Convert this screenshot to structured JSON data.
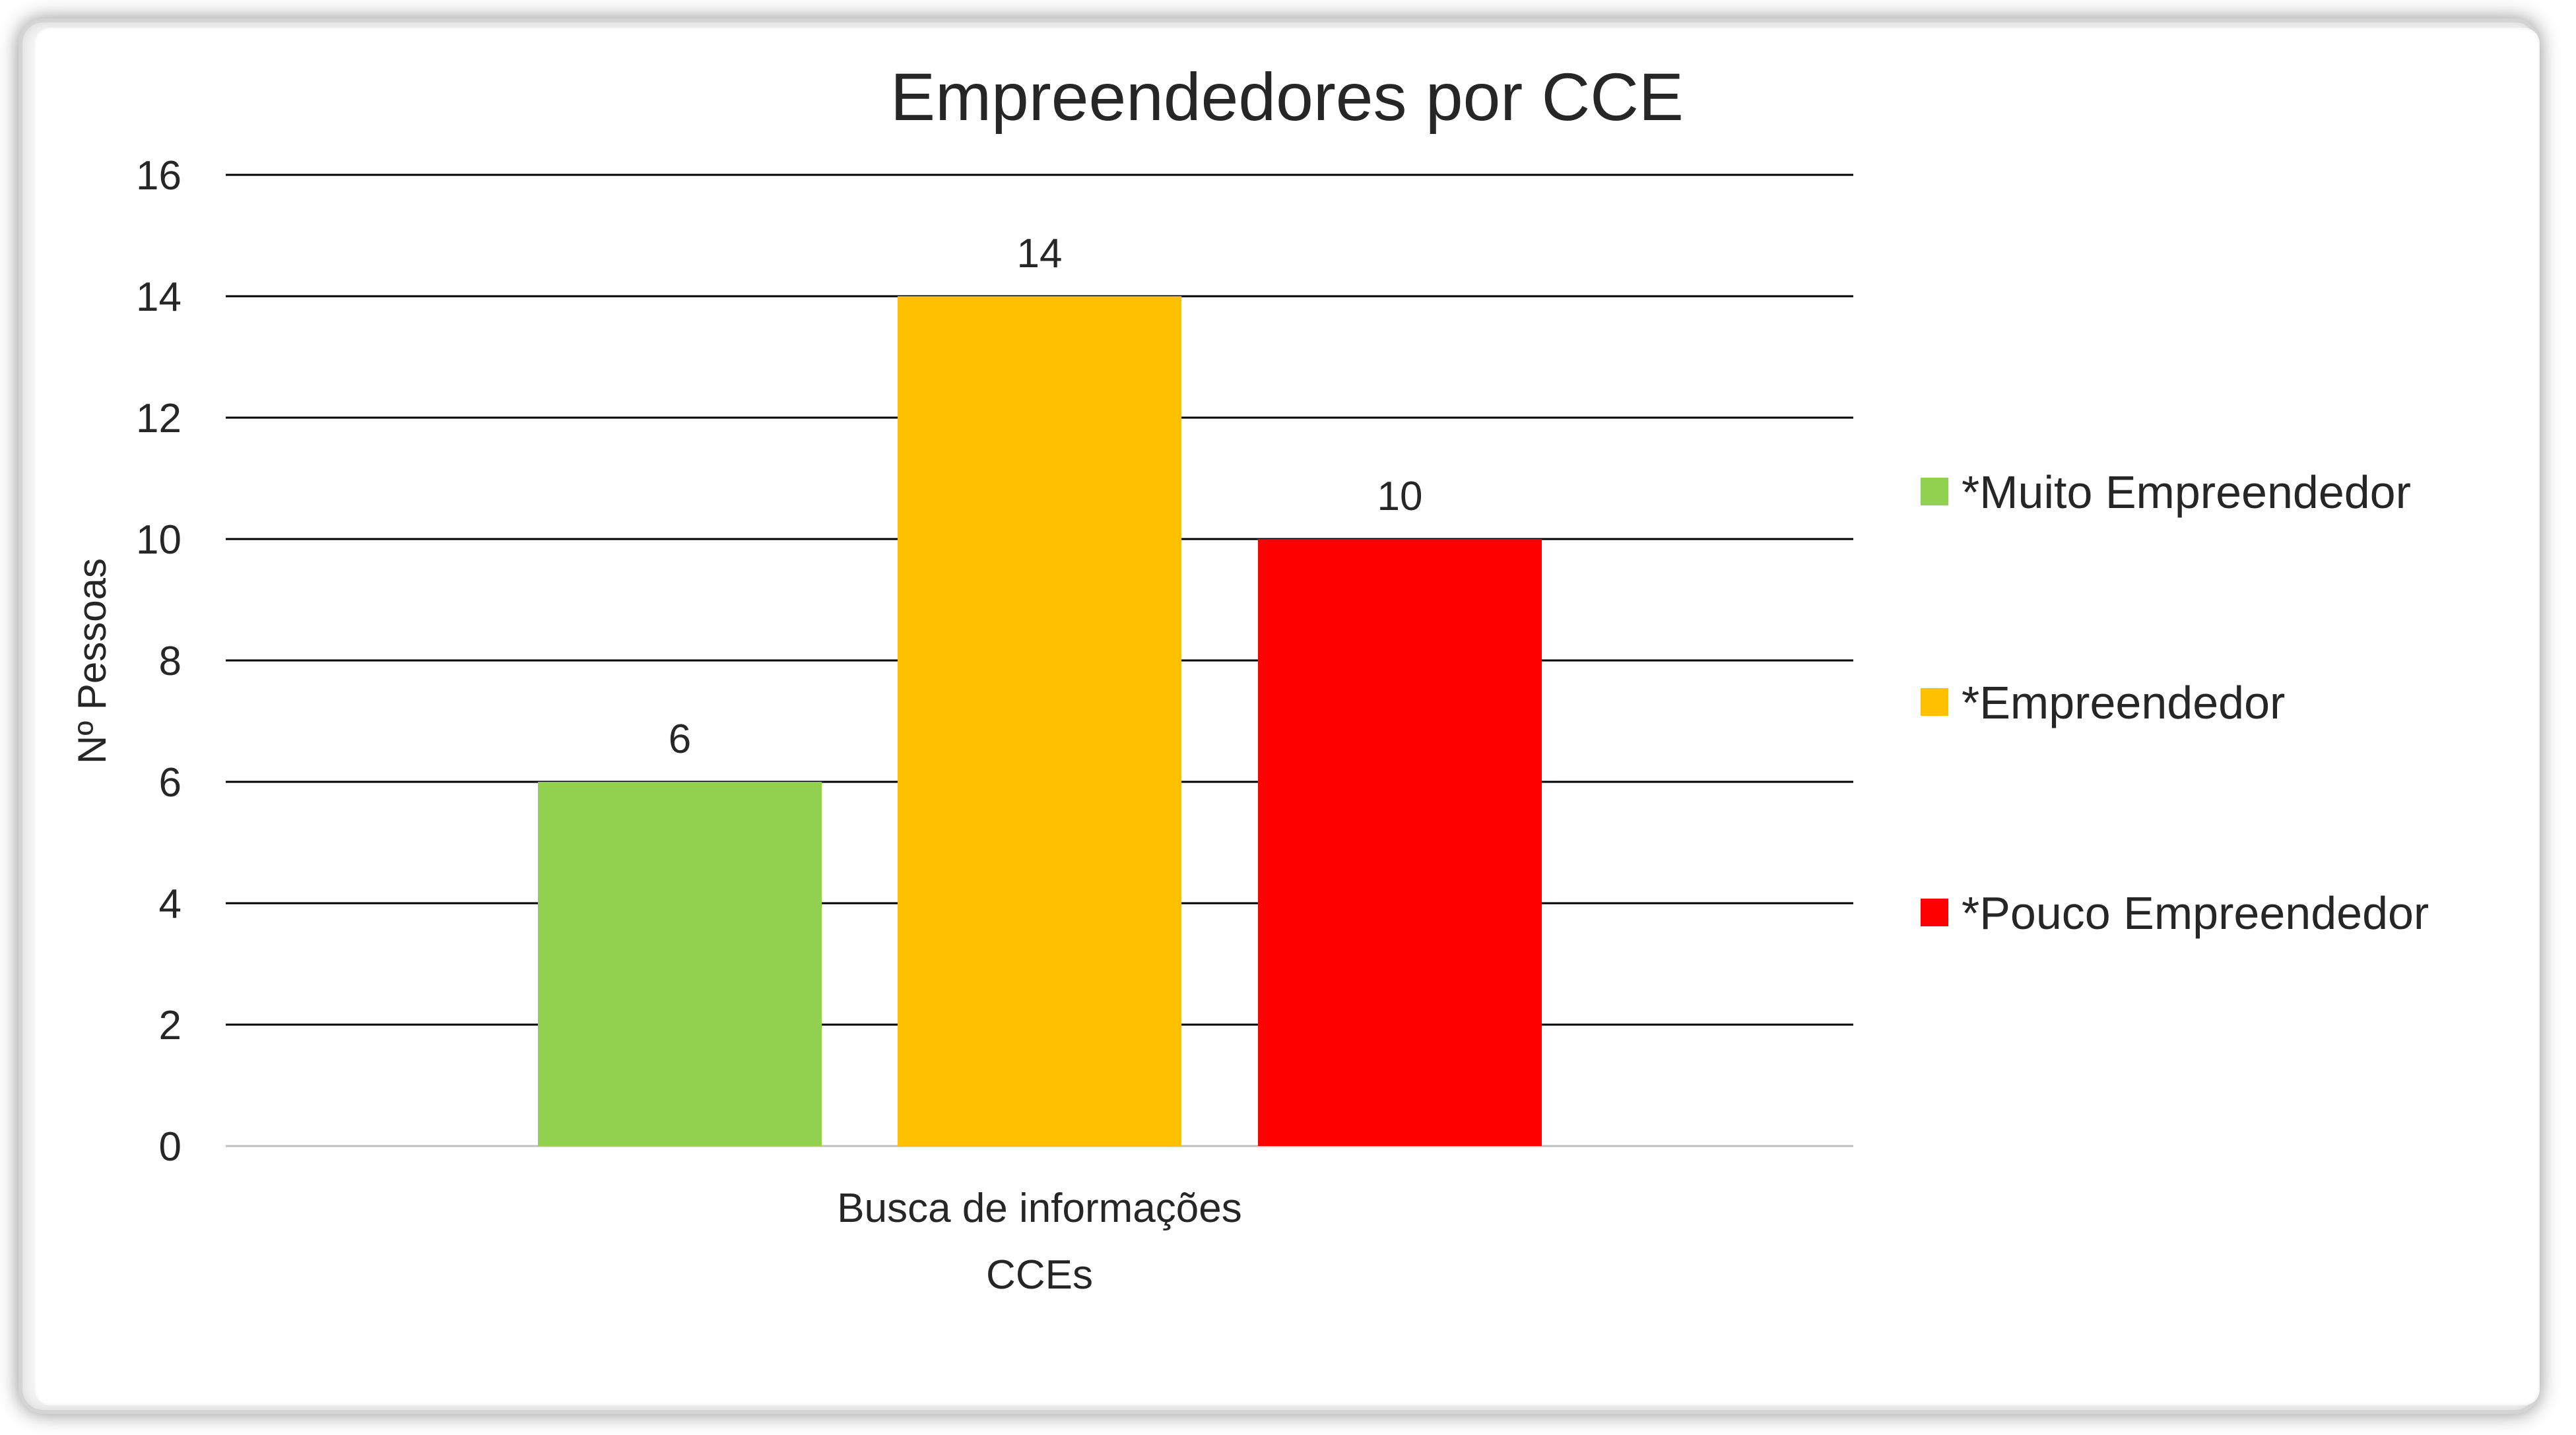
{
  "chart_data": {
    "type": "bar",
    "title": "Empreendedores por CCE",
    "xlabel": "CCEs",
    "ylabel": "Nº Pessoas",
    "categories": [
      "Busca de informações"
    ],
    "series": [
      {
        "name": "*Muito Empreendedor",
        "values": [
          6
        ],
        "color": "#92D050"
      },
      {
        "name": "*Empreendedor",
        "values": [
          14
        ],
        "color": "#FFC000"
      },
      {
        "name": "*Pouco Empreendedor",
        "values": [
          10
        ],
        "color": "#FF0000"
      }
    ],
    "ylim": [
      0,
      16
    ],
    "yticks": [
      "0",
      "2",
      "4",
      "6",
      "8",
      "10",
      "12",
      "14",
      "16"
    ],
    "data_labels": [
      "6",
      "14",
      "10"
    ],
    "grid": true,
    "legend": "right"
  },
  "colors": {
    "gridline": "#000000",
    "axis_line": "#bfbfbf",
    "text": "#262626"
  }
}
